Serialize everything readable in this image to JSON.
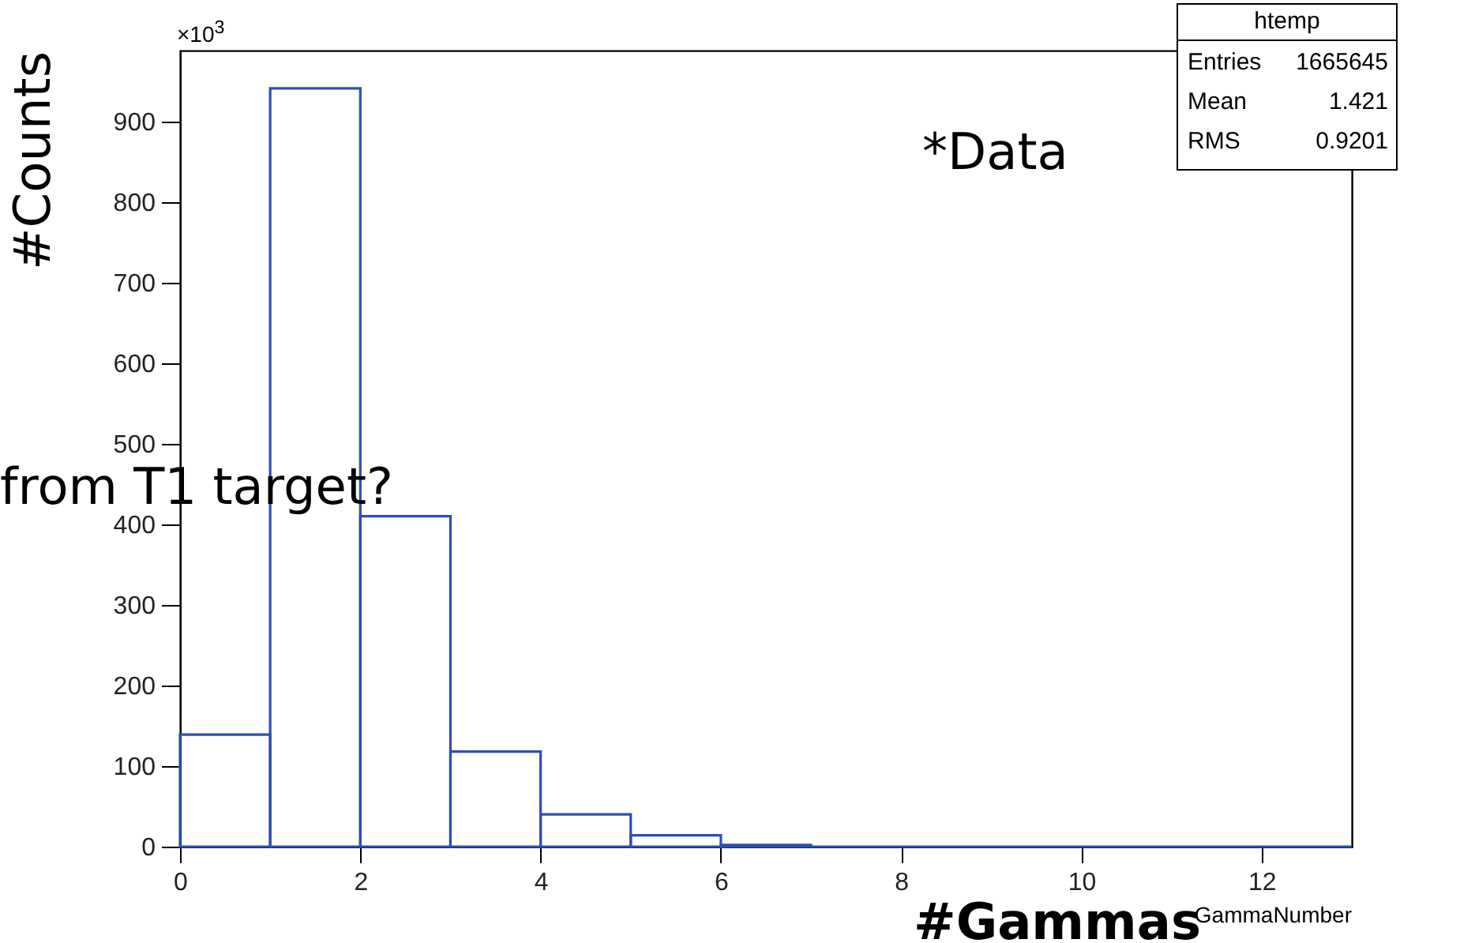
{
  "chart_data": {
    "type": "histogram",
    "xlabel": "#Gammas",
    "ylabel": "#Counts",
    "bins": [
      0,
      1,
      2,
      3,
      4,
      5,
      6,
      7,
      8,
      9,
      10,
      11,
      12,
      13
    ],
    "values": [
      139,
      941,
      410,
      118,
      40,
      14,
      2,
      0,
      0,
      0,
      0,
      0,
      0
    ],
    "color": "#2f4fb0",
    "xlim": [
      0,
      13
    ],
    "xticks": [
      0,
      2,
      4,
      6,
      8,
      10,
      12
    ],
    "ylim": [
      0,
      988
    ],
    "yticks": [
      0,
      100,
      200,
      300,
      400,
      500,
      600,
      700,
      800,
      900
    ],
    "grid": false,
    "annotations": [
      "×10$^{3}$",
      "*Data",
      "from T1 target?",
      "GammaNumber",
      "htemp",
      "Entries",
      "1665645",
      "Mean",
      "1.421",
      "RMS",
      "0.9201"
    ]
  }
}
